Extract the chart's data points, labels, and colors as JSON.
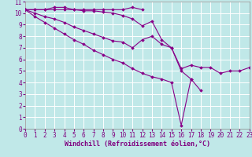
{
  "xlabel": "Windchill (Refroidissement éolien,°C)",
  "xlim": [
    0,
    23
  ],
  "ylim": [
    0,
    11
  ],
  "xticks": [
    0,
    1,
    2,
    3,
    4,
    5,
    6,
    7,
    8,
    9,
    10,
    11,
    12,
    13,
    14,
    15,
    16,
    17,
    18,
    19,
    20,
    21,
    22,
    23
  ],
  "yticks": [
    0,
    1,
    2,
    3,
    4,
    5,
    6,
    7,
    8,
    9,
    10,
    11
  ],
  "bg_color": "#c0e8e8",
  "grid_color": "#ffffff",
  "line_color": "#880088",
  "marker_color": "#880088",
  "series": [
    {
      "x": [
        0,
        1,
        2,
        3,
        4,
        5,
        6,
        7,
        8,
        9,
        10,
        11,
        12
      ],
      "y": [
        10.3,
        10.3,
        10.3,
        10.3,
        10.3,
        10.3,
        10.3,
        10.3,
        10.3,
        10.3,
        10.3,
        10.5,
        10.3
      ]
    },
    {
      "x": [
        0,
        1,
        2,
        3,
        4,
        5,
        6,
        7,
        8,
        9,
        10,
        11,
        12,
        13,
        14,
        15,
        16,
        17,
        18,
        19,
        20,
        21,
        22,
        23
      ],
      "y": [
        10.3,
        10.3,
        10.3,
        10.5,
        10.5,
        10.3,
        10.2,
        10.2,
        10.1,
        10.0,
        9.8,
        9.5,
        8.9,
        9.3,
        7.7,
        7.0,
        5.2,
        5.5,
        5.3,
        5.3,
        4.8,
        5.0,
        5.0,
        5.3
      ]
    },
    {
      "x": [
        0,
        1,
        2,
        3,
        4,
        5,
        6,
        7,
        8,
        9,
        10,
        11,
        12,
        13,
        14,
        15,
        16,
        17,
        18
      ],
      "y": [
        10.3,
        10.0,
        9.7,
        9.5,
        9.2,
        8.8,
        8.5,
        8.2,
        7.9,
        7.6,
        7.5,
        7.0,
        7.7,
        8.0,
        7.3,
        7.0,
        5.0,
        4.3,
        3.3
      ]
    },
    {
      "x": [
        0,
        1,
        2,
        3,
        4,
        5,
        6,
        7,
        8,
        9,
        10,
        11,
        12,
        13,
        14,
        15,
        16,
        17
      ],
      "y": [
        10.3,
        9.7,
        9.2,
        8.7,
        8.2,
        7.7,
        7.3,
        6.8,
        6.4,
        6.0,
        5.7,
        5.2,
        4.8,
        4.5,
        4.3,
        4.0,
        0.3,
        4.3
      ]
    }
  ],
  "spine_color": "#888888",
  "tick_color": "#800080",
  "label_color": "#800080",
  "xlabel_fontsize": 6,
  "tick_fontsize": 5.5
}
